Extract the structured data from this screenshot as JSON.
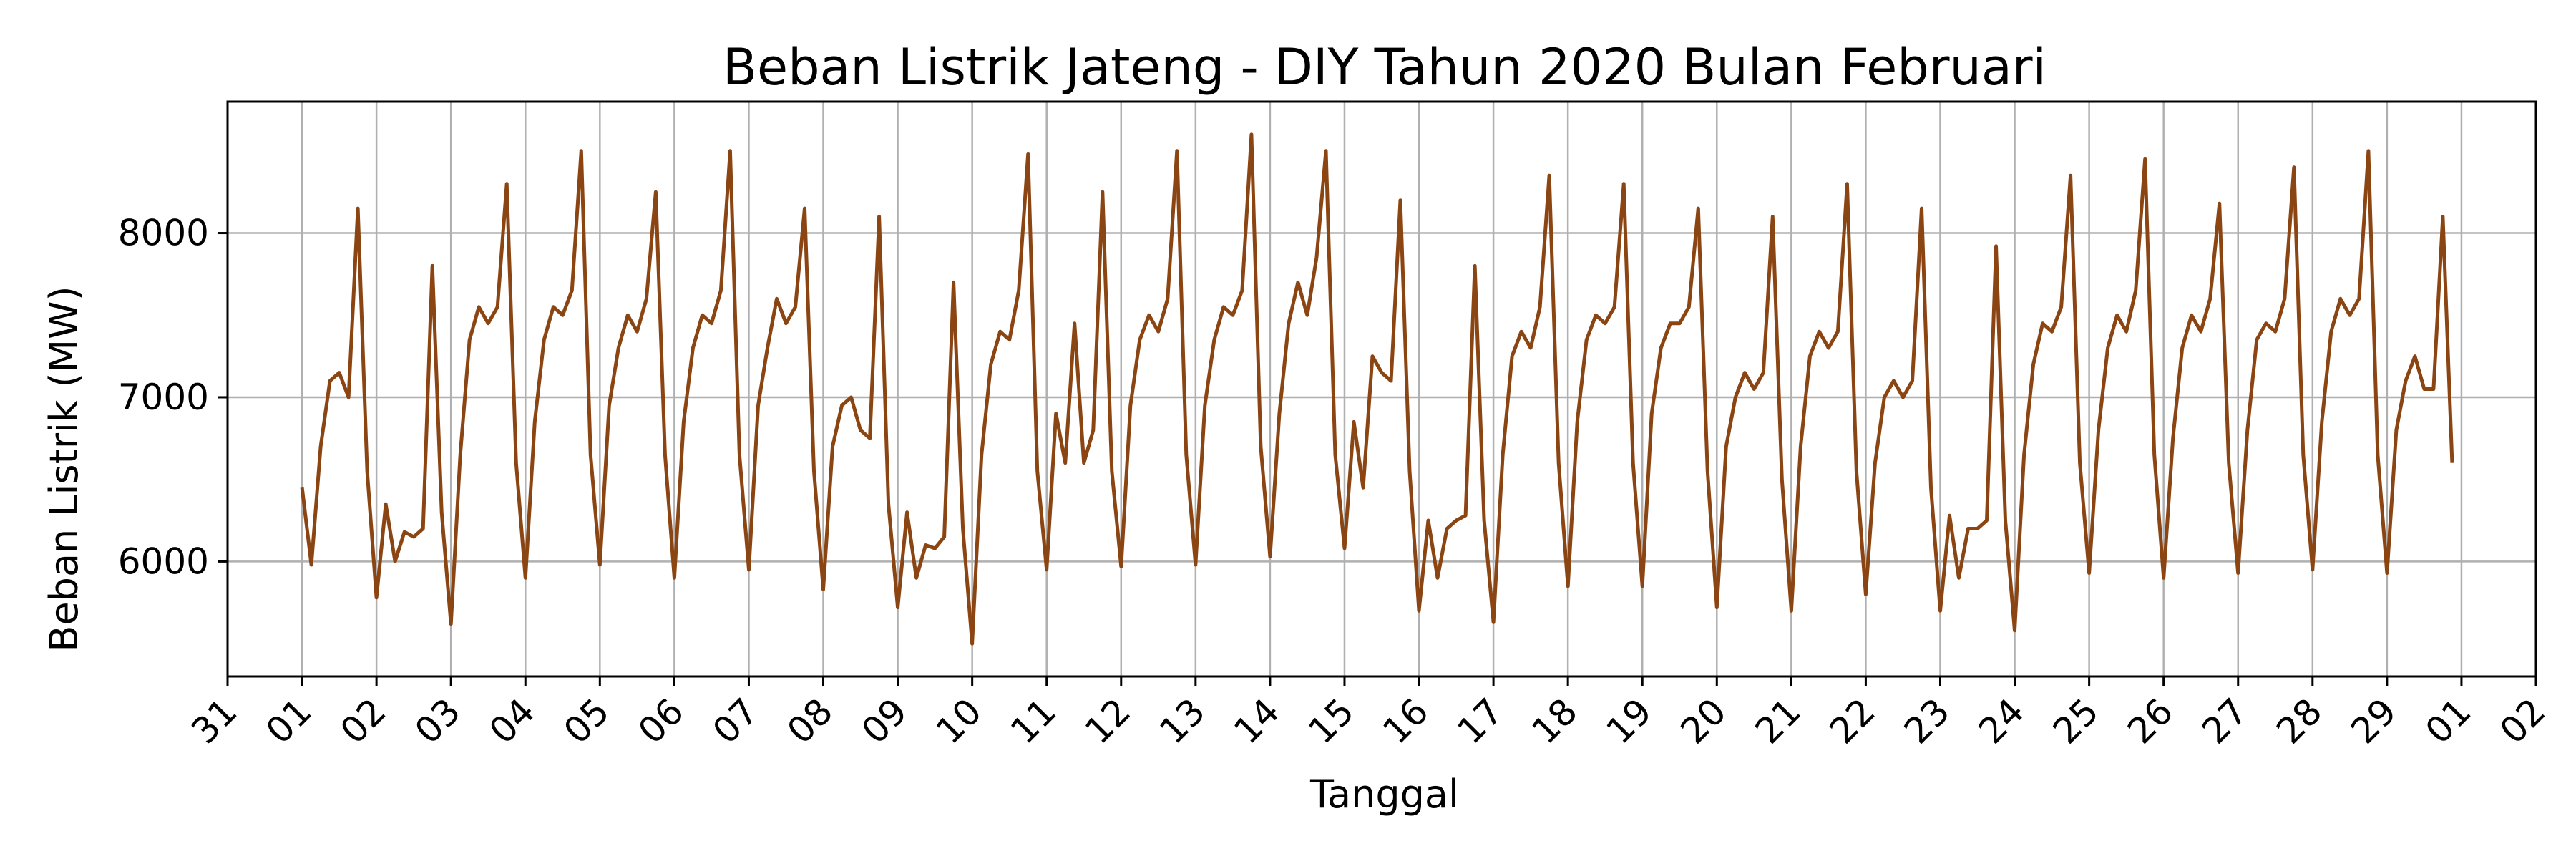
{
  "chart_data": {
    "type": "line",
    "title": "Beban Listrik Jateng - DIY Tahun 2020 Bulan Februari",
    "xlabel": "Tanggal",
    "ylabel": "Beban Listrik (MW)",
    "x_axis": {
      "type": "date",
      "range": [
        "2020-01-31",
        "2020-03-02"
      ],
      "tick_dates": [
        "2020-01-31",
        "2020-02-01",
        "2020-02-02",
        "2020-02-03",
        "2020-02-04",
        "2020-02-05",
        "2020-02-06",
        "2020-02-07",
        "2020-02-08",
        "2020-02-09",
        "2020-02-10",
        "2020-02-11",
        "2020-02-12",
        "2020-02-13",
        "2020-02-14",
        "2020-02-15",
        "2020-02-16",
        "2020-02-17",
        "2020-02-18",
        "2020-02-19",
        "2020-02-20",
        "2020-02-21",
        "2020-02-22",
        "2020-02-23",
        "2020-02-24",
        "2020-02-25",
        "2020-02-26",
        "2020-02-27",
        "2020-02-28",
        "2020-02-29",
        "2020-03-01",
        "2020-03-02"
      ],
      "tick_labels": [
        "31",
        "01",
        "02",
        "03",
        "04",
        "05",
        "06",
        "07",
        "08",
        "09",
        "10",
        "11",
        "12",
        "13",
        "14",
        "15",
        "16",
        "17",
        "18",
        "19",
        "20",
        "21",
        "22",
        "23",
        "24",
        "25",
        "26",
        "27",
        "28",
        "29",
        "01",
        "02"
      ],
      "tick_label_rotation": 45
    },
    "y_axis": {
      "range": [
        5300,
        8800
      ],
      "ticks": [
        6000,
        7000,
        8000
      ],
      "tick_labels": [
        "6000",
        "7000",
        "8000"
      ]
    },
    "grid": true,
    "legend": "none",
    "series": [
      {
        "color": "#8B4513",
        "sampling": "every 3 hours, 8 points per day, starting 2020-02-01 00:00",
        "daily_values": [
          {
            "date": "2020-02-01",
            "values": [
              6450,
              5980,
              6700,
              7100,
              7150,
              7000,
              8150,
              6550
            ]
          },
          {
            "date": "2020-02-02",
            "values": [
              5780,
              6350,
              6000,
              6180,
              6150,
              6200,
              7800,
              6300
            ]
          },
          {
            "date": "2020-02-03",
            "values": [
              5620,
              6650,
              7350,
              7550,
              7450,
              7550,
              8300,
              6600
            ]
          },
          {
            "date": "2020-02-04",
            "values": [
              5900,
              6850,
              7350,
              7550,
              7500,
              7650,
              8500,
              6650
            ]
          },
          {
            "date": "2020-02-05",
            "values": [
              5980,
              6950,
              7300,
              7500,
              7400,
              7600,
              8250,
              6650
            ]
          },
          {
            "date": "2020-02-06",
            "values": [
              5900,
              6850,
              7300,
              7500,
              7450,
              7650,
              8500,
              6650
            ]
          },
          {
            "date": "2020-02-07",
            "values": [
              5950,
              6950,
              7300,
              7600,
              7450,
              7550,
              8150,
              6550
            ]
          },
          {
            "date": "2020-02-08",
            "values": [
              5830,
              6700,
              6950,
              7000,
              6800,
              6750,
              8100,
              6350
            ]
          },
          {
            "date": "2020-02-09",
            "values": [
              5720,
              6300,
              5900,
              6100,
              6080,
              6150,
              7700,
              6200
            ]
          },
          {
            "date": "2020-02-10",
            "values": [
              5500,
              6650,
              7200,
              7400,
              7350,
              7650,
              8480,
              6550
            ]
          },
          {
            "date": "2020-02-11",
            "values": [
              5950,
              6900,
              6600,
              7450,
              6600,
              6800,
              8250,
              6550
            ]
          },
          {
            "date": "2020-02-12",
            "values": [
              5970,
              6950,
              7350,
              7500,
              7400,
              7600,
              8500,
              6650
            ]
          },
          {
            "date": "2020-02-13",
            "values": [
              5980,
              6950,
              7350,
              7550,
              7500,
              7650,
              8600,
              6700
            ]
          },
          {
            "date": "2020-02-14",
            "values": [
              6030,
              6900,
              7450,
              7700,
              7500,
              7850,
              8500,
              6650
            ]
          },
          {
            "date": "2020-02-15",
            "values": [
              6080,
              6850,
              6450,
              7250,
              7150,
              7100,
              8200,
              6550
            ]
          },
          {
            "date": "2020-02-16",
            "values": [
              5700,
              6250,
              5900,
              6200,
              6250,
              6280,
              7800,
              6250
            ]
          },
          {
            "date": "2020-02-17",
            "values": [
              5630,
              6650,
              7250,
              7400,
              7300,
              7550,
              8350,
              6600
            ]
          },
          {
            "date": "2020-02-18",
            "values": [
              5850,
              6850,
              7350,
              7500,
              7450,
              7550,
              8300,
              6600
            ]
          },
          {
            "date": "2020-02-19",
            "values": [
              5850,
              6900,
              7300,
              7450,
              7450,
              7550,
              8150,
              6550
            ]
          },
          {
            "date": "2020-02-20",
            "values": [
              5720,
              6700,
              7000,
              7150,
              7050,
              7150,
              8100,
              6500
            ]
          },
          {
            "date": "2020-02-21",
            "values": [
              5700,
              6700,
              7250,
              7400,
              7300,
              7400,
              8300,
              6550
            ]
          },
          {
            "date": "2020-02-22",
            "values": [
              5800,
              6600,
              7000,
              7100,
              7000,
              7100,
              8150,
              6450
            ]
          },
          {
            "date": "2020-02-23",
            "values": [
              5700,
              6280,
              5900,
              6200,
              6200,
              6250,
              7920,
              6250
            ]
          },
          {
            "date": "2020-02-24",
            "values": [
              5580,
              6650,
              7200,
              7450,
              7400,
              7550,
              8350,
              6600
            ]
          },
          {
            "date": "2020-02-25",
            "values": [
              5930,
              6800,
              7300,
              7500,
              7400,
              7650,
              8450,
              6650
            ]
          },
          {
            "date": "2020-02-26",
            "values": [
              5900,
              6750,
              7300,
              7500,
              7400,
              7600,
              8180,
              6600
            ]
          },
          {
            "date": "2020-02-27",
            "values": [
              5930,
              6800,
              7350,
              7450,
              7400,
              7600,
              8400,
              6650
            ]
          },
          {
            "date": "2020-02-28",
            "values": [
              5950,
              6850,
              7400,
              7600,
              7500,
              7600,
              8500,
              6650
            ]
          },
          {
            "date": "2020-02-29",
            "values": [
              5930,
              6800,
              7100,
              7250,
              7050,
              7050,
              8100,
              6600
            ]
          }
        ]
      }
    ]
  }
}
